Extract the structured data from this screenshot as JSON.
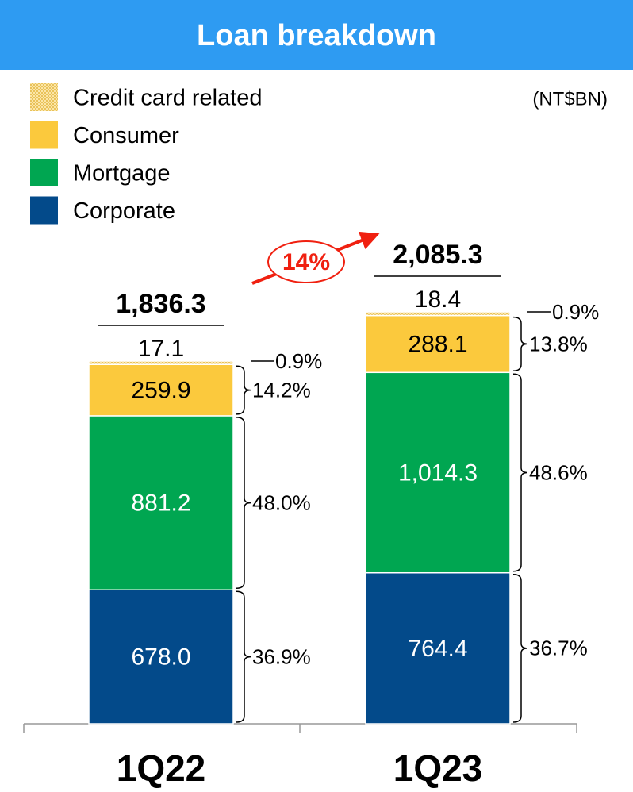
{
  "chart_data": {
    "type": "bar",
    "stacked": true,
    "title": "Loan breakdown",
    "unit": "(NT$BN)",
    "categories": [
      "1Q22",
      "1Q23"
    ],
    "series": [
      {
        "name": "Corporate",
        "color": "#034a8a",
        "values": [
          678.0,
          764.4
        ],
        "value_labels": [
          "678.0",
          "764.4"
        ],
        "shares": [
          36.9,
          36.7
        ],
        "share_labels": [
          "36.9%",
          "36.7%"
        ]
      },
      {
        "name": "Mortgage",
        "color": "#00a651",
        "values": [
          881.2,
          1014.3
        ],
        "value_labels": [
          "881.2",
          "1,014.3"
        ],
        "shares": [
          48.0,
          48.6
        ],
        "share_labels": [
          "48.0%",
          "48.6%"
        ]
      },
      {
        "name": "Consumer",
        "color": "#fbc93d",
        "values": [
          259.9,
          288.1
        ],
        "value_labels": [
          "259.9",
          "288.1"
        ],
        "shares": [
          14.2,
          13.8
        ],
        "share_labels": [
          "14.2%",
          "13.8%"
        ]
      },
      {
        "name": "Credit card related",
        "color": "#f3d98a",
        "pattern": true,
        "values": [
          17.1,
          18.4
        ],
        "value_labels": [
          "17.1",
          "18.4"
        ],
        "shares": [
          0.9,
          0.9
        ],
        "share_labels": [
          "0.9%",
          "0.9%"
        ]
      }
    ],
    "totals": [
      1836.3,
      2085.3
    ],
    "total_labels": [
      "1,836.3",
      "2,085.3"
    ],
    "growth": {
      "value": 14,
      "label": "14%"
    }
  }
}
